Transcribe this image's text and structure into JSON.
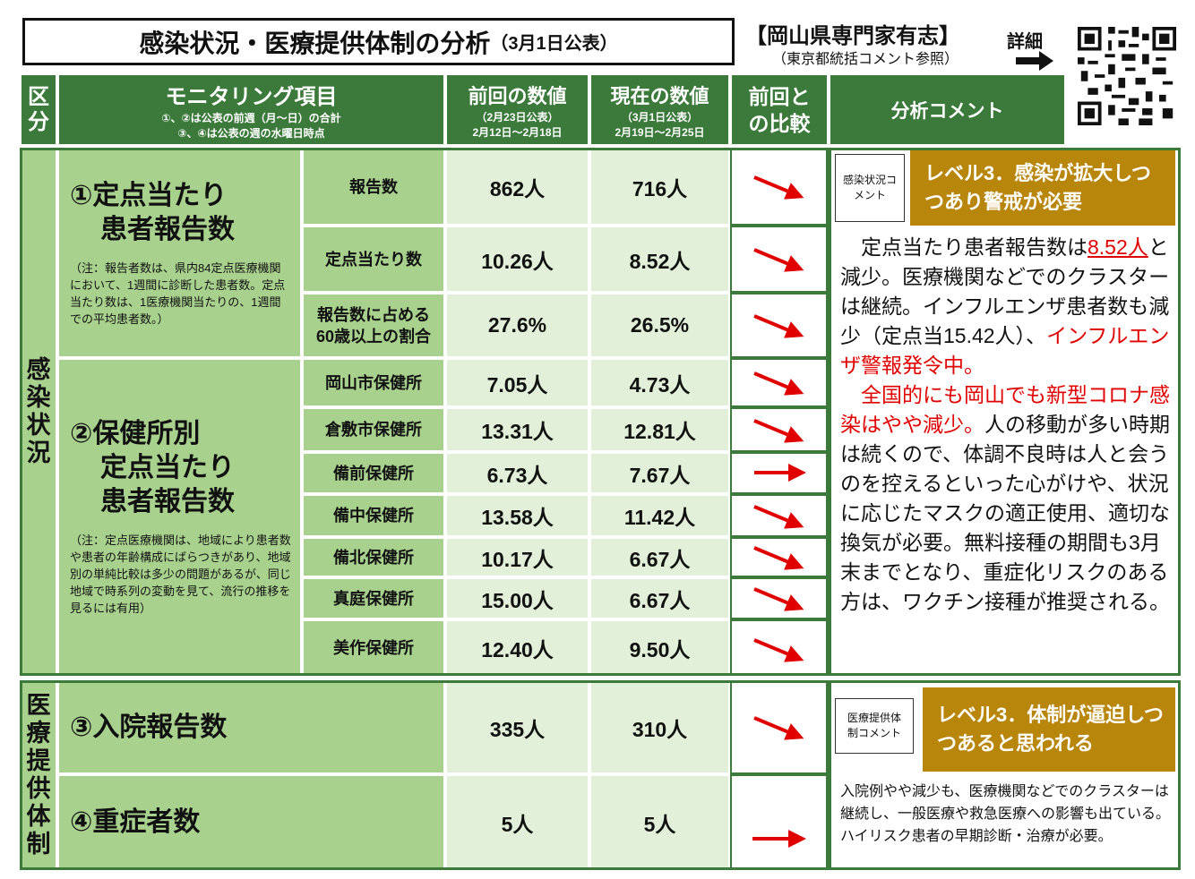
{
  "header": {
    "title": "感染状況・医療提供体制の分析",
    "date": "（3月1日公表）",
    "org": "【岡山県専門家有志】",
    "org_note": "（東京都統括コメント参照）",
    "detail": "詳細"
  },
  "table": {
    "columns": {
      "category": "区分",
      "item": "モニタリング項目",
      "item_notes": [
        "①、②は公表の前週（月～日）の合計",
        "③、④は公表の週の水曜日時点"
      ],
      "previous": "前回の数値",
      "previous_date": "（2月23日公表）",
      "previous_period": "2月12日～2月18日",
      "current": "現在の数値",
      "current_date": "（3月1日公表）",
      "current_period": "2月19日～2月25日",
      "comparison": "前回との比較",
      "comment": "分析コメント"
    },
    "sections": [
      {
        "label": "感染状況",
        "groups": [
          {
            "title": [
              "①定点当たり",
              "患者報告数"
            ],
            "note": "（注：報告者数は、県内84定点医療機関において、1週間に診断した患者数。定点当たり数は、1医療機関当たりの、1週間での平均患者数。）",
            "rows": [
              {
                "label": "報告数",
                "previous": "862人",
                "current": "716人"
              },
              {
                "label": "定点当たり数",
                "previous": "10.26人",
                "current": "8.52人"
              },
              {
                "label": "報告数に占める60歳以上の割合",
                "previous": "27.6%",
                "current": "26.5%"
              }
            ]
          },
          {
            "title": [
              "②保健所別",
              "定点当たり",
              "患者報告数"
            ],
            "note": "（注：定点医療機関は、地域により患者数や患者の年齢構成にばらつきがあり、地域別の単純比較は多少の問題があるが、同じ地域で時系列の変動を見て、流行の推移を見るには有用）",
            "rows": [
              {
                "label": "岡山市保健所",
                "previous": "7.05人",
                "current": "4.73人"
              },
              {
                "label": "倉敷市保健所",
                "previous": "13.31人",
                "current": "12.81人"
              },
              {
                "label": "備前保健所",
                "previous": "6.73人",
                "current": "7.67人"
              },
              {
                "label": "備中保健所",
                "previous": "13.58人",
                "current": "11.42人"
              },
              {
                "label": "備北保健所",
                "previous": "10.17人",
                "current": "6.67人"
              },
              {
                "label": "真庭保健所",
                "previous": "15.00人",
                "current": "6.67人"
              },
              {
                "label": "美作保健所",
                "previous": "12.40人",
                "current": "9.50人"
              }
            ]
          }
        ],
        "comment_label": "感染状況コメント",
        "level": "レベル3．感染が拡大しつつあり警戒が必要",
        "comment": [
          [
            {
              "text": "　定点当たり患者報告数は"
            },
            {
              "text": "8.52人",
              "color": "#e00000",
              "underline": true
            },
            {
              "text": "と減少。医療機関などでのクラスターは継続。インフルエンザ患者数も減少（定点当15.42人）、"
            },
            {
              "text": "インフルエンザ警報発令中。",
              "color": "#e00000"
            }
          ],
          [
            {
              "text": "　全国的にも岡山でも新型コロナ感染はやや減少。",
              "color": "#e00000"
            },
            {
              "text": "人の移動が多い時期は続くので、体調不良時は人と会うのを控えるといった心がけや、状況に応じたマスクの適正使用、適切な換気が必要。無料接種の期間も3月末までとなり、重症化リスクのある方は、ワクチン接種が推奨される。"
            }
          ]
        ]
      },
      {
        "label": "医療提供体制",
        "groups": [
          {
            "title": [
              "③入院報告数"
            ],
            "rows": [
              {
                "previous": "335人",
                "current": "310人"
              }
            ]
          },
          {
            "title": [
              "④重症者数"
            ],
            "rows": [
              {
                "previous": "5人",
                "current": "5人"
              }
            ]
          }
        ],
        "comment_label": "医療提供体制コメント",
        "level": "レベル3．体制が逼迫しつつあると思われる",
        "comment": [
          [
            {
              "text": "入院例やや減少も、医療機関などでのクラスターは継続し、一般医療や救急医療への影響も出ている。ハイリスク患者の早期診断・治療が必要。"
            }
          ]
        ]
      }
    ]
  }
}
